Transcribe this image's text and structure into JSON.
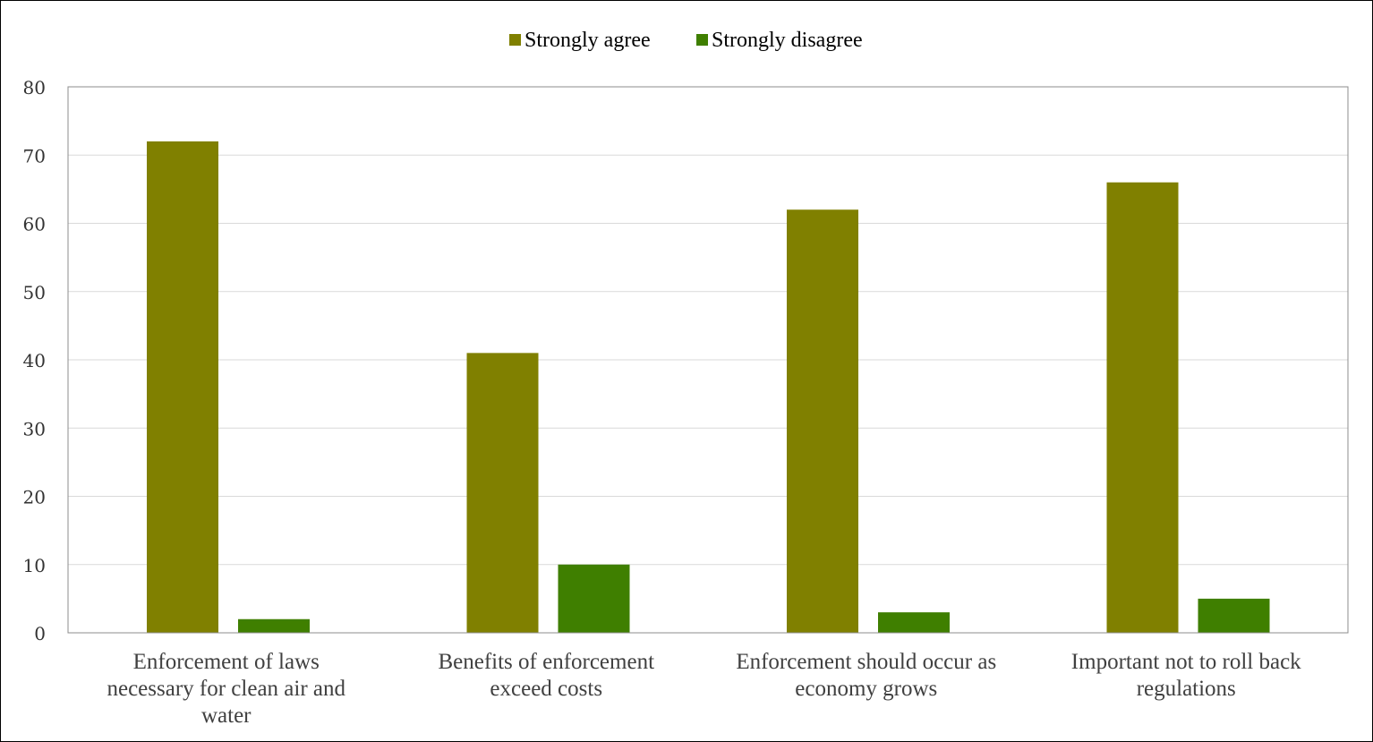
{
  "chart_data": {
    "type": "bar",
    "categories": [
      [
        "Enforcement of laws",
        "necessary for clean air and",
        "water"
      ],
      [
        "Benefits of enforcement",
        "exceed costs"
      ],
      [
        "Enforcement should occur as",
        "economy grows"
      ],
      [
        "Important not to roll back",
        "regulations"
      ]
    ],
    "series": [
      {
        "name": "Strongly agree",
        "color": "#808000",
        "values": [
          72,
          41,
          62,
          66
        ]
      },
      {
        "name": "Strongly disagree",
        "color": "#3F7F00",
        "values": [
          2,
          10,
          3,
          5
        ]
      }
    ],
    "title": "",
    "xlabel": "",
    "ylabel": "",
    "ylim": [
      0,
      80
    ],
    "yticks": [
      0,
      10,
      20,
      30,
      40,
      50,
      60,
      70,
      80
    ],
    "grid": true,
    "legend": "top-center"
  }
}
